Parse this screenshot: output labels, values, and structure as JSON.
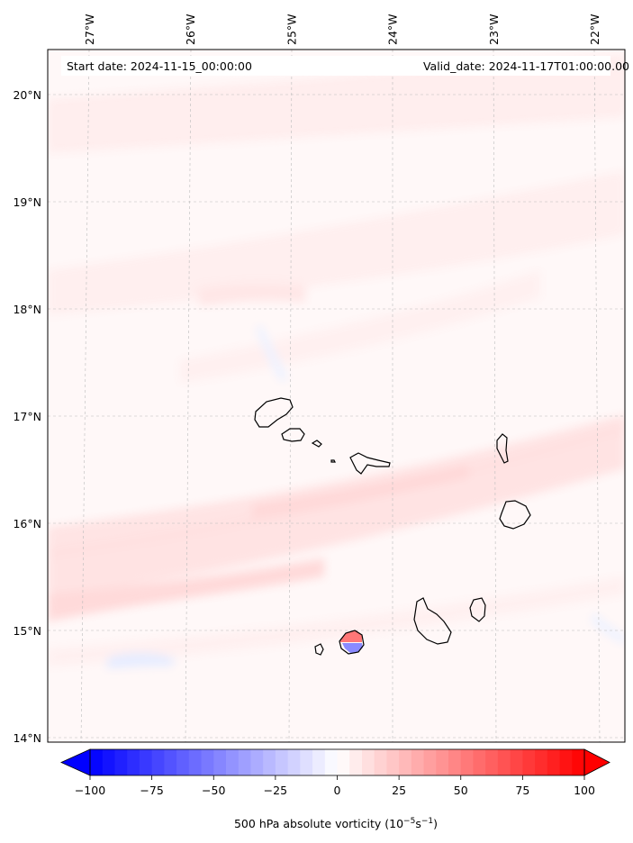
{
  "header": {
    "start_date": "Start date: 2024-11-15_00:00:00",
    "valid_date": "Valid_date: 2024-11-17T01:00:00.00"
  },
  "map": {
    "region": "Cape Verde islands",
    "lon_labels": [
      {
        "value": -27,
        "text": "27°W"
      },
      {
        "value": -26,
        "text": "26°W"
      },
      {
        "value": -25,
        "text": "25°W"
      },
      {
        "value": -24,
        "text": "24°W"
      },
      {
        "value": -23,
        "text": "23°W"
      },
      {
        "value": -22,
        "text": "22°W"
      }
    ],
    "lat_labels": [
      {
        "value": 20,
        "text": "20°N"
      },
      {
        "value": 19,
        "text": "19°N"
      },
      {
        "value": 18,
        "text": "18°N"
      },
      {
        "value": 17,
        "text": "17°N"
      },
      {
        "value": 16,
        "text": "16°N"
      },
      {
        "value": 15,
        "text": "15°N"
      },
      {
        "value": 14,
        "text": "14°N"
      }
    ]
  },
  "colorbar": {
    "label": "500 hPa absolute vorticity (10",
    "label_exp1": "−5",
    "label_mid": "s",
    "label_exp2": "−1",
    "label_end": ")",
    "min": -100,
    "max": 100,
    "levels": 40,
    "colormap": "bwr",
    "ticks": [
      {
        "value": -100,
        "text": "−100"
      },
      {
        "value": -75,
        "text": "−75"
      },
      {
        "value": -50,
        "text": "−50"
      },
      {
        "value": -25,
        "text": "−25"
      },
      {
        "value": 0,
        "text": "0"
      },
      {
        "value": 25,
        "text": "25"
      },
      {
        "value": 50,
        "text": "50"
      },
      {
        "value": 75,
        "text": "75"
      },
      {
        "value": 100,
        "text": "100"
      }
    ]
  },
  "colors": {
    "negative_max": "#0000ff",
    "neutral": "#ffffff",
    "positive_max": "#ff0000",
    "gridline": "#bbbbbb",
    "coastline": "#000000"
  }
}
